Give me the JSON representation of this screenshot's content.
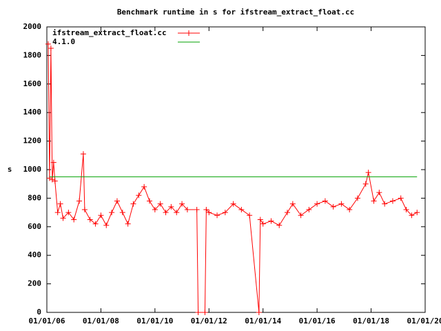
{
  "chart_data": {
    "type": "line",
    "title": "Benchmark runtime in s for ifstream_extract_float.cc",
    "y_label": "s",
    "xlim": [
      2006,
      2020
    ],
    "xticks": [
      {
        "value": 2006,
        "label": "01/01/06"
      },
      {
        "value": 2008,
        "label": "01/01/08"
      },
      {
        "value": 2010,
        "label": "01/01/10"
      },
      {
        "value": 2012,
        "label": "01/01/12"
      },
      {
        "value": 2014,
        "label": "01/01/14"
      },
      {
        "value": 2016,
        "label": "01/01/16"
      },
      {
        "value": 2018,
        "label": "01/01/18"
      },
      {
        "value": 2020,
        "label": "01/01/20"
      }
    ],
    "ylim": [
      0,
      2000
    ],
    "yticks": [
      0,
      200,
      400,
      600,
      800,
      1000,
      1200,
      1400,
      1600,
      1800,
      2000
    ],
    "legend": "top-left",
    "series": [
      {
        "name": "ifstream_extract_float.cc",
        "color": "#ff0000",
        "markers": true,
        "x": [
          2006.05,
          2006.1,
          2006.15,
          2006.2,
          2006.25,
          2006.3,
          2006.4,
          2006.5,
          2006.6,
          2006.8,
          2007.0,
          2007.2,
          2007.35,
          2007.4,
          2007.6,
          2007.8,
          2008.0,
          2008.2,
          2008.4,
          2008.6,
          2008.8,
          2009.0,
          2009.2,
          2009.4,
          2009.6,
          2009.8,
          2010.0,
          2010.2,
          2010.4,
          2010.6,
          2010.8,
          2011.0,
          2011.2,
          2011.55,
          2011.6,
          2011.85,
          2011.9,
          2012.0,
          2012.3,
          2012.6,
          2012.9,
          2013.2,
          2013.5,
          2013.85,
          2013.9,
          2014.0,
          2014.3,
          2014.6,
          2014.9,
          2015.1,
          2015.4,
          2015.7,
          2016.0,
          2016.3,
          2016.6,
          2016.9,
          2017.2,
          2017.5,
          2017.8,
          2017.9,
          2018.1,
          2018.3,
          2018.5,
          2018.8,
          2019.1,
          2019.3,
          2019.5,
          2019.7
        ],
        "values": [
          1880,
          940,
          1850,
          930,
          1050,
          920,
          700,
          760,
          660,
          700,
          650,
          780,
          1110,
          720,
          650,
          620,
          680,
          610,
          700,
          780,
          700,
          620,
          760,
          820,
          880,
          780,
          720,
          760,
          700,
          740,
          700,
          760,
          720,
          720,
          0,
          0,
          720,
          700,
          680,
          700,
          760,
          720,
          680,
          0,
          650,
          620,
          640,
          610,
          700,
          760,
          680,
          720,
          760,
          780,
          740,
          760,
          720,
          800,
          900,
          980,
          780,
          840,
          760,
          780,
          800,
          720,
          680,
          700
        ]
      },
      {
        "name": "4.1.0",
        "color": "#00a000",
        "markers": false,
        "x": [
          2006.1,
          2019.7
        ],
        "values": [
          950,
          950
        ]
      }
    ]
  }
}
